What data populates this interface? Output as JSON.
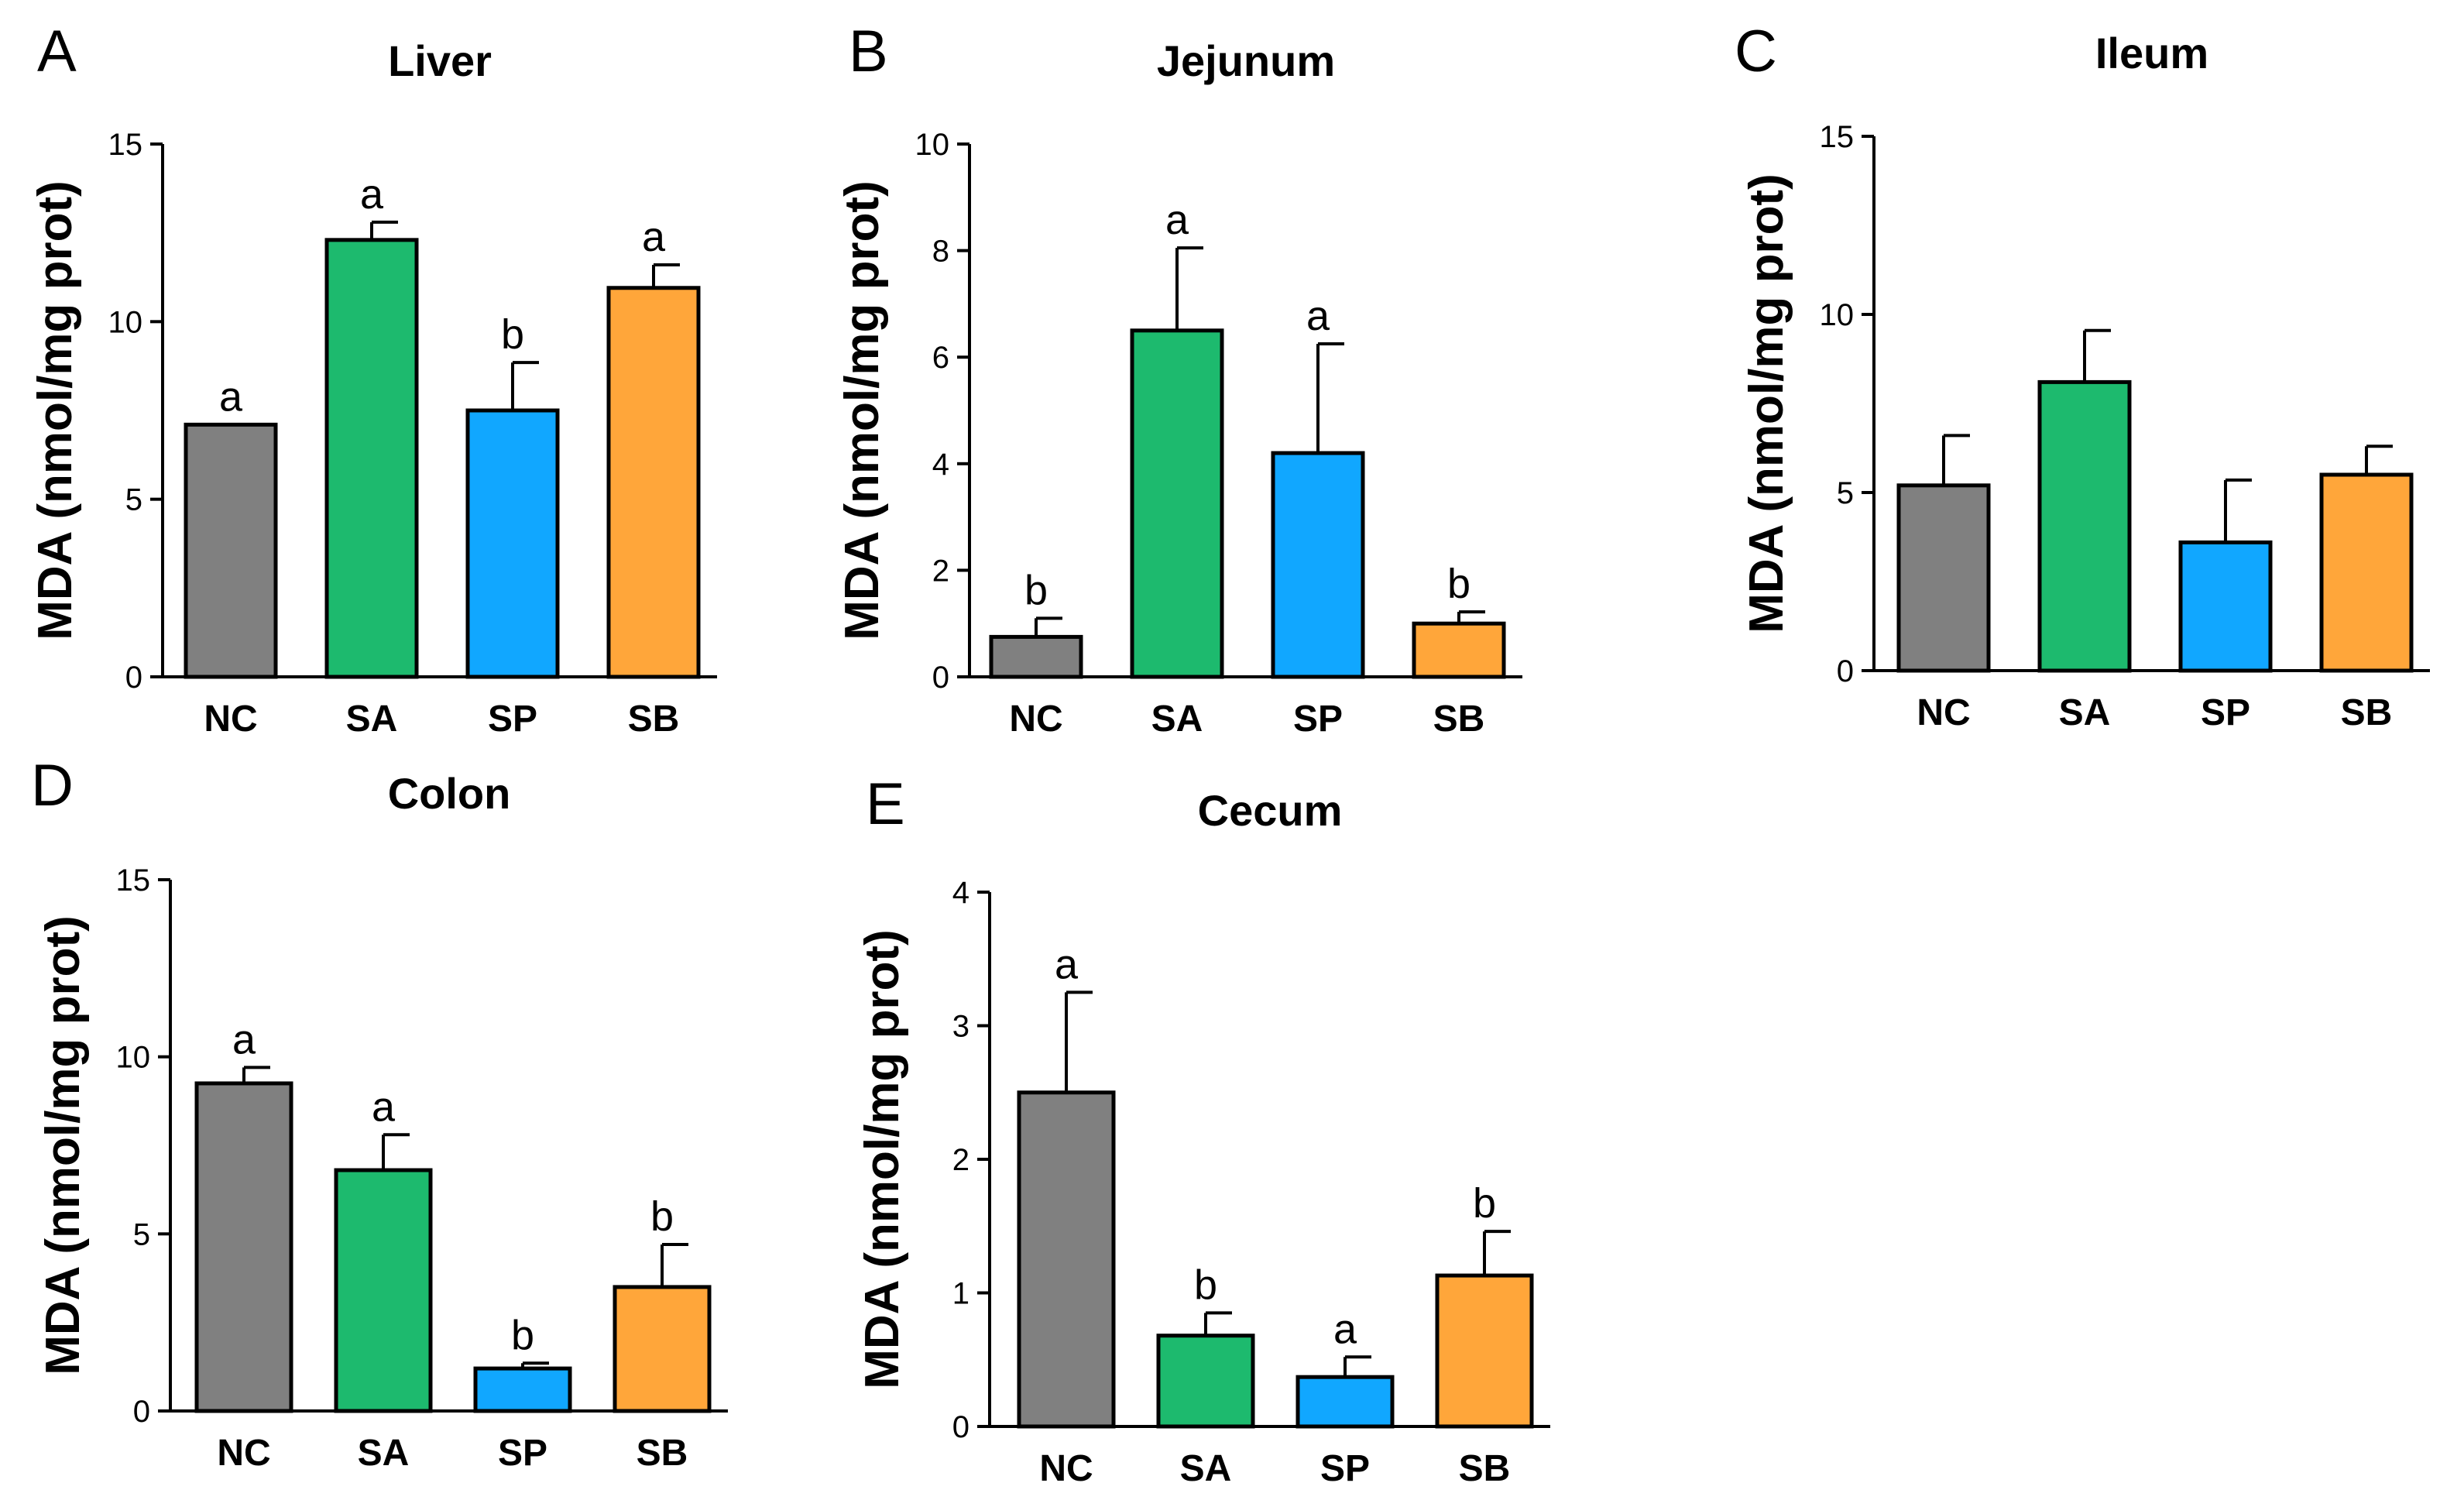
{
  "colors": {
    "NC": "#808080",
    "SA": "#1dba6e",
    "SP": "#11a7ff",
    "SB": "#ffa63a",
    "stroke": "#000000"
  },
  "chart_data": [
    {
      "type": "bar",
      "panel": "A",
      "title": "Liver",
      "ylabel": "MDA (nmol/mg prot)",
      "xlabel": "",
      "categories": [
        "NC",
        "SA",
        "SP",
        "SB"
      ],
      "values": [
        7.1,
        12.3,
        7.5,
        10.95
      ],
      "errors": [
        0,
        0.5,
        1.35,
        0.65
      ],
      "letters": [
        "a",
        "a",
        "b",
        "a"
      ],
      "ylim": [
        0,
        15
      ],
      "yticks": [
        0,
        5,
        10,
        15
      ]
    },
    {
      "type": "bar",
      "panel": "B",
      "title": "Jejunum",
      "ylabel": "MDA (nmol/mg prot)",
      "xlabel": "",
      "categories": [
        "NC",
        "SA",
        "SP",
        "SB"
      ],
      "values": [
        0.75,
        6.5,
        4.2,
        1.0
      ],
      "errors": [
        0.35,
        1.55,
        2.05,
        0.22
      ],
      "letters": [
        "b",
        "a",
        "a",
        "b"
      ],
      "ylim": [
        0,
        10
      ],
      "yticks": [
        0,
        2,
        4,
        6,
        8,
        10
      ]
    },
    {
      "type": "bar",
      "panel": "C",
      "title": "Ileum",
      "ylabel": "MDA (nmol/mg prot)",
      "xlabel": "",
      "categories": [
        "NC",
        "SA",
        "SP",
        "SB"
      ],
      "values": [
        5.2,
        8.1,
        3.6,
        5.5
      ],
      "errors": [
        1.4,
        1.45,
        1.75,
        0.8
      ],
      "letters": [
        "",
        "",
        "",
        ""
      ],
      "ylim": [
        0,
        15
      ],
      "yticks": [
        0,
        5,
        10,
        15
      ]
    },
    {
      "type": "bar",
      "panel": "D",
      "title": "Colon",
      "ylabel": "MDA (nmol/mg prot)",
      "xlabel": "",
      "categories": [
        "NC",
        "SA",
        "SP",
        "SB"
      ],
      "values": [
        9.25,
        6.8,
        1.2,
        3.5
      ],
      "errors": [
        0.45,
        1.0,
        0.15,
        1.2
      ],
      "letters": [
        "a",
        "a",
        "b",
        "b"
      ],
      "ylim": [
        0,
        15
      ],
      "yticks": [
        0,
        5,
        10,
        15
      ]
    },
    {
      "type": "bar",
      "panel": "E",
      "title": "Cecum",
      "ylabel": "MDA (nmol/mg prot)",
      "xlabel": "",
      "categories": [
        "NC",
        "SA",
        "SP",
        "SB"
      ],
      "values": [
        2.5,
        0.68,
        0.37,
        1.13
      ],
      "errors": [
        0.75,
        0.17,
        0.15,
        0.33
      ],
      "letters": [
        "a",
        "b",
        "a",
        "b"
      ],
      "ylim": [
        0,
        4
      ],
      "yticks": [
        0,
        1,
        2,
        3,
        4
      ]
    }
  ]
}
